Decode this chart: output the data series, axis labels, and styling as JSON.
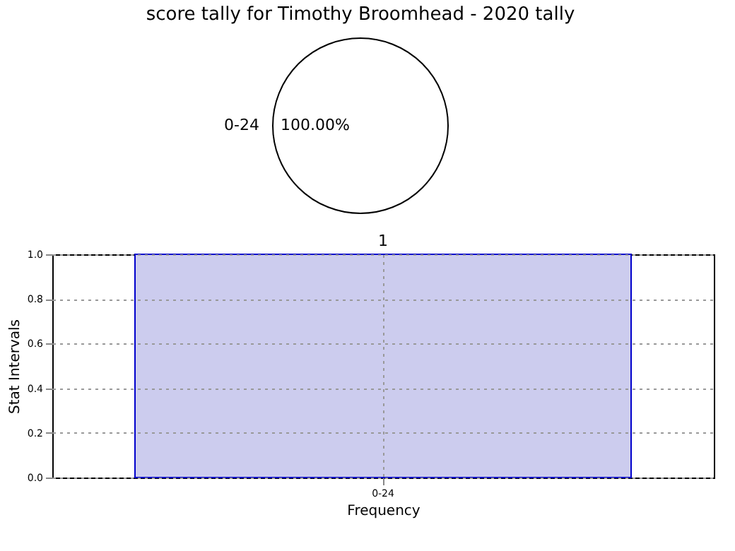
{
  "chart_data": [
    {
      "type": "pie",
      "title": "score tally for Timothy Broomhead - 2020 tally",
      "categories": [
        "0-24"
      ],
      "values": [
        100
      ],
      "colors": [
        "#ffffff"
      ],
      "value_labels": [
        "100.00%"
      ]
    },
    {
      "type": "bar",
      "categories": [
        "0-24"
      ],
      "values": [
        1
      ],
      "color": "#ccccee",
      "xlabel": "Frequency",
      "ylabel": "Stat Intervals",
      "ylim": [
        0,
        1
      ],
      "yticks": [
        {
          "value": 0,
          "label": "0.0"
        },
        {
          "value": 0.2,
          "label": "0.2"
        },
        {
          "value": 0.4,
          "label": "0.4"
        },
        {
          "value": 0.6,
          "label": "0.6"
        },
        {
          "value": 0.8,
          "label": "0.8"
        },
        {
          "value": 1,
          "label": "1.0"
        }
      ],
      "grid": true,
      "data_labels": true
    }
  ]
}
